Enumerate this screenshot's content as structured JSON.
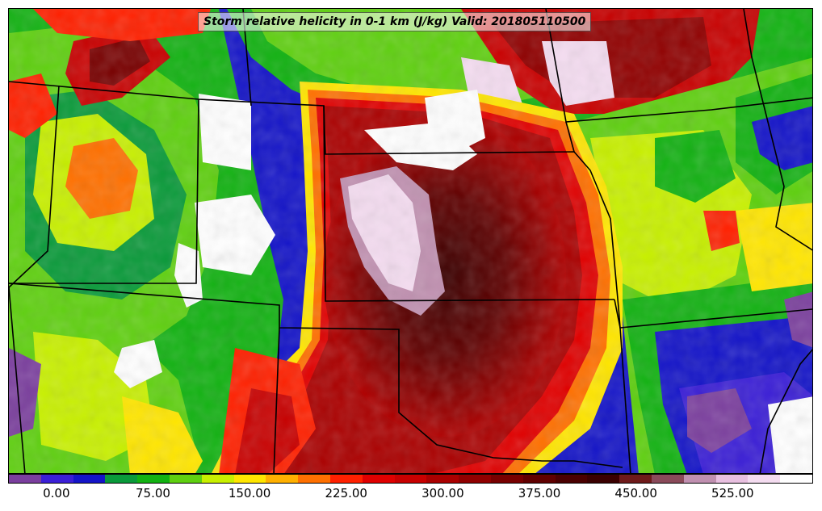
{
  "title": "Storm relative helicity in 0-1 km (J/kg) Valid: 201805110500",
  "colorbar": {
    "colors": [
      "#7b3f9e",
      "#3b1fd6",
      "#1414c8",
      "#0a9a3a",
      "#12b212",
      "#5fd010",
      "#c8f000",
      "#ffe600",
      "#ffb000",
      "#ff7000",
      "#ff2000",
      "#e00000",
      "#c80000",
      "#aa0000",
      "#900000",
      "#780000",
      "#600000",
      "#4a0000",
      "#3a0000",
      "#6e1a1a",
      "#8a4a5a",
      "#c090b0",
      "#e8c0e0",
      "#f4dcf0",
      "#ffffff"
    ],
    "ticks": [
      {
        "label": "0.00",
        "value": 0
      },
      {
        "label": "75.00",
        "value": 75
      },
      {
        "label": "150.00",
        "value": 150
      },
      {
        "label": "225.00",
        "value": 225
      },
      {
        "label": "300.00",
        "value": 300
      },
      {
        "label": "375.00",
        "value": 375
      },
      {
        "label": "450.00",
        "value": 450
      },
      {
        "label": "525.00",
        "value": 525
      }
    ],
    "range": [
      -37.5,
      587.5
    ]
  },
  "map": {
    "field": "Storm relative helicity 0-1 km",
    "units": "J/kg",
    "valid_time": "201805110500"
  }
}
